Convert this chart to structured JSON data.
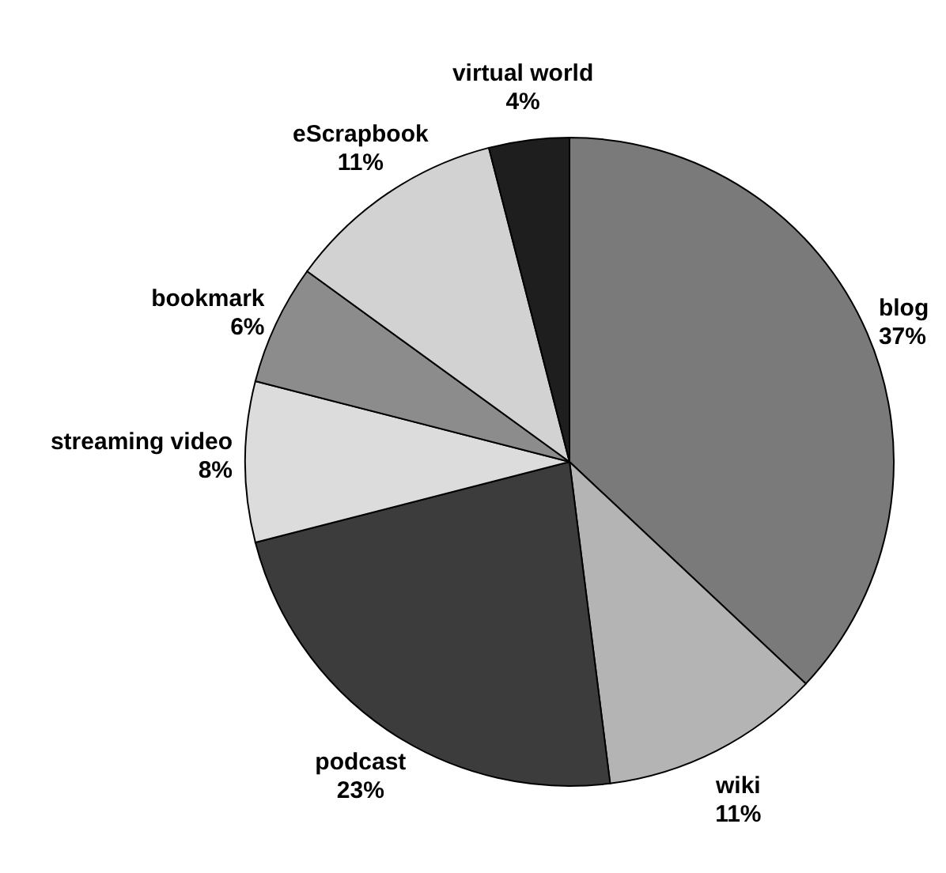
{
  "chart_data": {
    "type": "pie",
    "categories": [
      "blog",
      "wiki",
      "podcast",
      "streaming video",
      "bookmark",
      "eScrapbook",
      "virtual world"
    ],
    "values": [
      37,
      11,
      23,
      8,
      6,
      11,
      4
    ],
    "value_labels": [
      "37%",
      "11%",
      "23%",
      "8%",
      "6%",
      "11%",
      "4%"
    ],
    "colors": [
      "#7a7a7a",
      "#b4b4b4",
      "#3c3c3c",
      "#dcdcdc",
      "#8c8c8c",
      "#d2d2d2",
      "#1e1e1e"
    ]
  }
}
